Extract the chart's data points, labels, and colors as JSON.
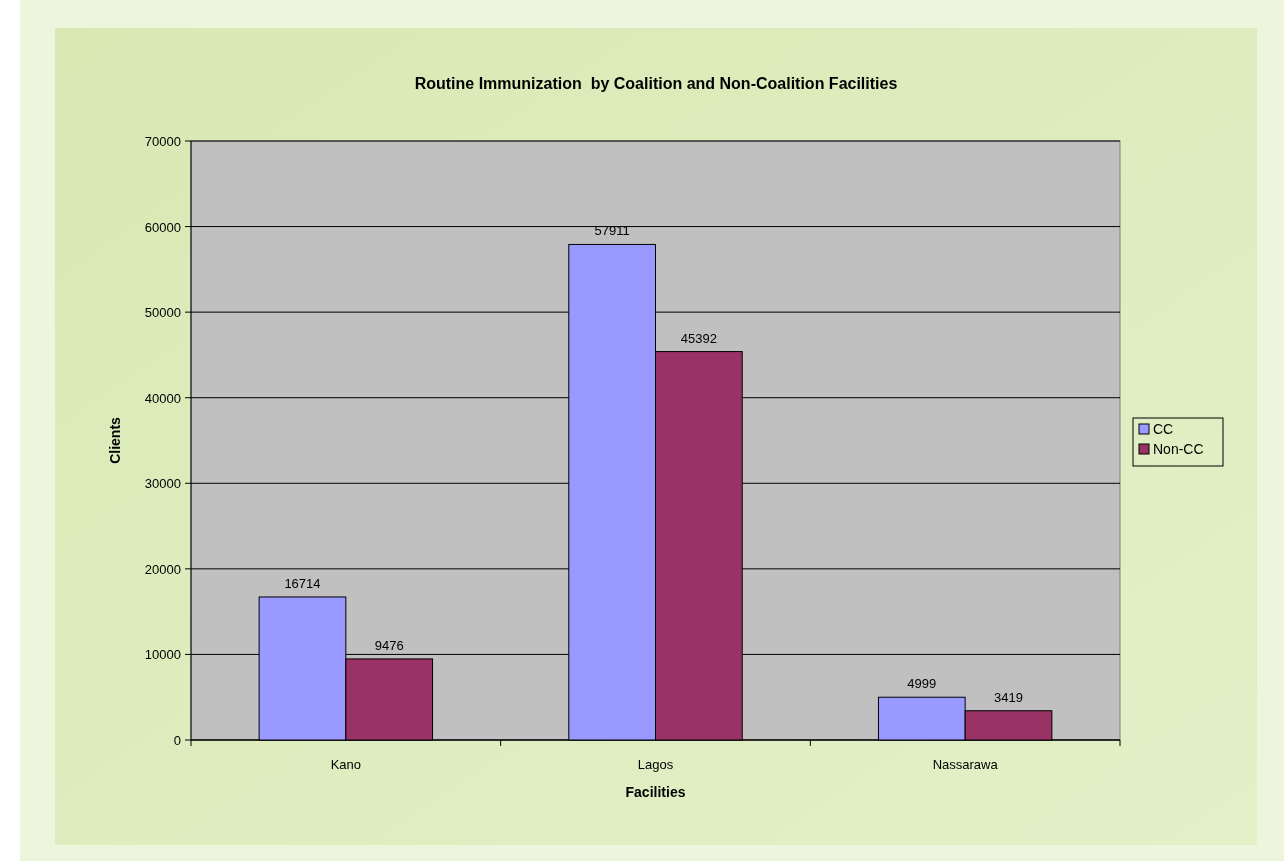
{
  "chart_data": {
    "type": "bar",
    "title": "Routine Immunization  by Coalition and Non-Coalition Facilities",
    "xlabel": "Facilities",
    "ylabel": "Clients",
    "categories": [
      "Kano",
      "Lagos",
      "Nassarawa"
    ],
    "series": [
      {
        "name": "CC",
        "color": "#9999ff",
        "values": [
          16714,
          57911,
          4999
        ]
      },
      {
        "name": "Non-CC",
        "color": "#993366",
        "values": [
          9476,
          45392,
          3419
        ]
      }
    ],
    "ylim": [
      0,
      70000
    ],
    "yticks": [
      0,
      10000,
      20000,
      30000,
      40000,
      50000,
      60000,
      70000
    ],
    "grid": "y",
    "legend": "right",
    "data_labels": true
  }
}
